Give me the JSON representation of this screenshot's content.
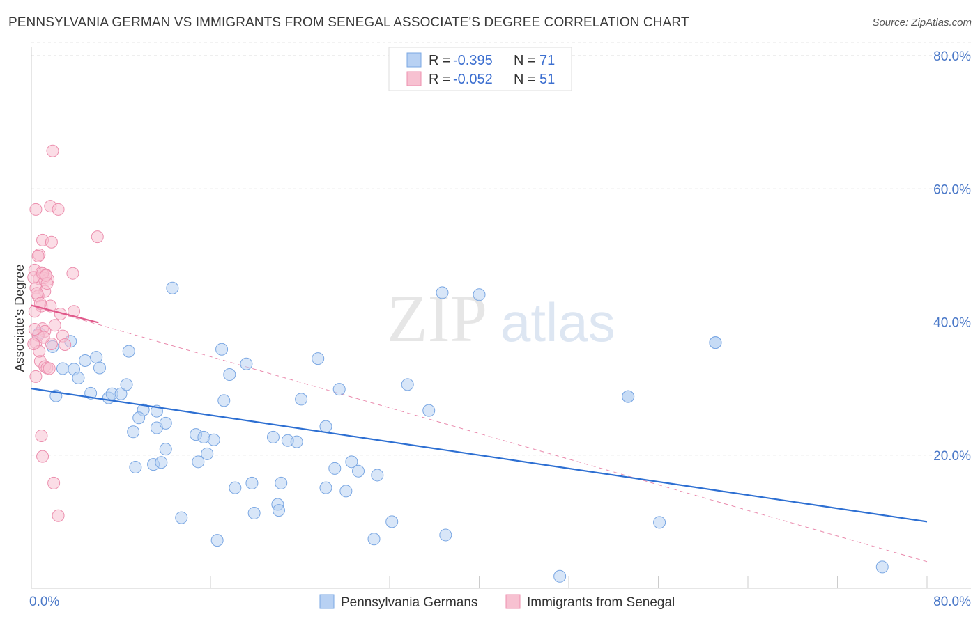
{
  "title": "PENNSYLVANIA GERMAN VS IMMIGRANTS FROM SENEGAL ASSOCIATE'S DEGREE CORRELATION CHART",
  "source": "Source: ZipAtlas.com",
  "watermark": {
    "zip": "ZIP",
    "atlas": "atlas"
  },
  "legend": {
    "r_label": "R =",
    "n_label": "N =",
    "series1": {
      "r": "-0.395",
      "n": "71"
    },
    "series2": {
      "r": "-0.052",
      "n": "51"
    }
  },
  "chart_data": {
    "type": "scatter",
    "title": "PENNSYLVANIA GERMAN VS IMMIGRANTS FROM SENEGAL ASSOCIATE'S DEGREE CORRELATION CHART",
    "xlabel": "",
    "ylabel": "Associate's Degree",
    "xlim": [
      0,
      80
    ],
    "ylim": [
      0,
      80
    ],
    "x_tick_labels": [
      "0.0%",
      "80.0%"
    ],
    "y_tick_labels": [
      "20.0%",
      "40.0%",
      "60.0%",
      "80.0%"
    ],
    "y_ticks": [
      20,
      40,
      60,
      80
    ],
    "colors": {
      "series1_fill": "#b8d1f3",
      "series1_stroke": "#7aa7e3",
      "series1_line": "#2d6fd2",
      "series2_fill": "#f7c1d1",
      "series2_stroke": "#ec8fae",
      "series2_line": "#e0588a",
      "axis_text": "#4a78c8"
    },
    "series": [
      {
        "name": "Pennsylvania Germans",
        "r": -0.395,
        "n": 71,
        "trend": {
          "x": [
            0,
            80
          ],
          "y": [
            30.0,
            10.0
          ]
        },
        "points": [
          [
            0.7,
            38.3
          ],
          [
            1.9,
            36.3
          ],
          [
            3.5,
            37.1
          ],
          [
            2.8,
            33.0
          ],
          [
            4.8,
            34.2
          ],
          [
            3.8,
            32.9
          ],
          [
            5.8,
            34.7
          ],
          [
            4.2,
            31.6
          ],
          [
            6.1,
            33.1
          ],
          [
            5.3,
            29.3
          ],
          [
            6.9,
            28.6
          ],
          [
            7.2,
            29.2
          ],
          [
            8.0,
            29.2
          ],
          [
            8.5,
            30.6
          ],
          [
            8.7,
            35.6
          ],
          [
            10.0,
            26.8
          ],
          [
            9.6,
            25.6
          ],
          [
            9.1,
            23.5
          ],
          [
            12.6,
            45.1
          ],
          [
            11.2,
            24.1
          ],
          [
            11.2,
            26.6
          ],
          [
            12.0,
            20.9
          ],
          [
            9.3,
            18.2
          ],
          [
            10.9,
            18.6
          ],
          [
            11.6,
            18.9
          ],
          [
            14.7,
            23.1
          ],
          [
            15.4,
            22.7
          ],
          [
            14.9,
            19.0
          ],
          [
            15.7,
            20.2
          ],
          [
            16.3,
            22.3
          ],
          [
            17.2,
            28.2
          ],
          [
            17.7,
            32.1
          ],
          [
            17.0,
            35.9
          ],
          [
            19.2,
            33.7
          ],
          [
            18.2,
            15.1
          ],
          [
            19.7,
            15.8
          ],
          [
            13.4,
            10.6
          ],
          [
            16.6,
            7.2
          ],
          [
            19.9,
            11.3
          ],
          [
            21.6,
            22.7
          ],
          [
            22.0,
            12.6
          ],
          [
            22.1,
            11.7
          ],
          [
            22.3,
            15.8
          ],
          [
            22.9,
            22.2
          ],
          [
            23.7,
            22.0
          ],
          [
            24.1,
            28.4
          ],
          [
            25.6,
            34.5
          ],
          [
            26.3,
            24.3
          ],
          [
            26.3,
            15.1
          ],
          [
            27.1,
            18.0
          ],
          [
            27.5,
            29.9
          ],
          [
            28.1,
            14.6
          ],
          [
            28.6,
            19.0
          ],
          [
            29.2,
            17.6
          ],
          [
            30.6,
            7.4
          ],
          [
            30.9,
            17.0
          ],
          [
            32.2,
            10.0
          ],
          [
            33.6,
            30.6
          ],
          [
            35.5,
            26.7
          ],
          [
            36.7,
            44.4
          ],
          [
            37.0,
            8.0
          ],
          [
            40.0,
            44.1
          ],
          [
            47.2,
            1.8
          ],
          [
            53.3,
            28.8
          ],
          [
            53.3,
            28.8
          ],
          [
            56.1,
            9.9
          ],
          [
            61.1,
            36.9
          ],
          [
            61.1,
            36.9
          ],
          [
            76.0,
            3.2
          ],
          [
            2.2,
            28.9
          ],
          [
            12.0,
            24.8
          ]
        ]
      },
      {
        "name": "Immigrants from Senegal",
        "r": -0.052,
        "n": 51,
        "trend": {
          "x": [
            0,
            6.0
          ],
          "y": [
            42.5,
            39.9
          ]
        },
        "trend_extended": {
          "x": [
            0,
            80
          ],
          "y": [
            42.5,
            4.0
          ]
        },
        "points": [
          [
            0.4,
            56.9
          ],
          [
            1.0,
            52.3
          ],
          [
            1.7,
            57.4
          ],
          [
            2.4,
            56.9
          ],
          [
            1.8,
            52.0
          ],
          [
            1.9,
            65.7
          ],
          [
            5.9,
            52.8
          ],
          [
            0.7,
            50.1
          ],
          [
            0.3,
            47.8
          ],
          [
            0.9,
            47.4
          ],
          [
            1.3,
            47.1
          ],
          [
            0.7,
            46.5
          ],
          [
            1.1,
            46.6
          ],
          [
            1.5,
            46.4
          ],
          [
            0.4,
            45.1
          ],
          [
            1.2,
            44.6
          ],
          [
            0.6,
            43.9
          ],
          [
            0.9,
            42.4
          ],
          [
            1.7,
            42.4
          ],
          [
            0.3,
            41.6
          ],
          [
            3.7,
            47.3
          ],
          [
            3.8,
            41.6
          ],
          [
            1.0,
            39.0
          ],
          [
            1.2,
            38.6
          ],
          [
            2.1,
            39.5
          ],
          [
            1.8,
            36.7
          ],
          [
            0.4,
            36.9
          ],
          [
            0.6,
            38.0
          ],
          [
            2.8,
            37.9
          ],
          [
            3.0,
            36.6
          ],
          [
            0.8,
            34.1
          ],
          [
            1.2,
            33.3
          ],
          [
            1.4,
            33.1
          ],
          [
            0.4,
            31.8
          ],
          [
            0.9,
            22.9
          ],
          [
            1.0,
            19.8
          ],
          [
            2.0,
            15.8
          ],
          [
            2.4,
            10.9
          ],
          [
            0.2,
            46.7
          ],
          [
            0.5,
            44.3
          ],
          [
            0.6,
            49.9
          ],
          [
            1.0,
            47.3
          ],
          [
            1.4,
            45.8
          ],
          [
            0.3,
            38.9
          ],
          [
            0.7,
            35.6
          ],
          [
            1.6,
            33.0
          ],
          [
            2.6,
            41.2
          ],
          [
            0.2,
            36.7
          ],
          [
            1.1,
            37.7
          ],
          [
            0.8,
            42.8
          ],
          [
            1.3,
            47.0
          ]
        ]
      }
    ]
  }
}
